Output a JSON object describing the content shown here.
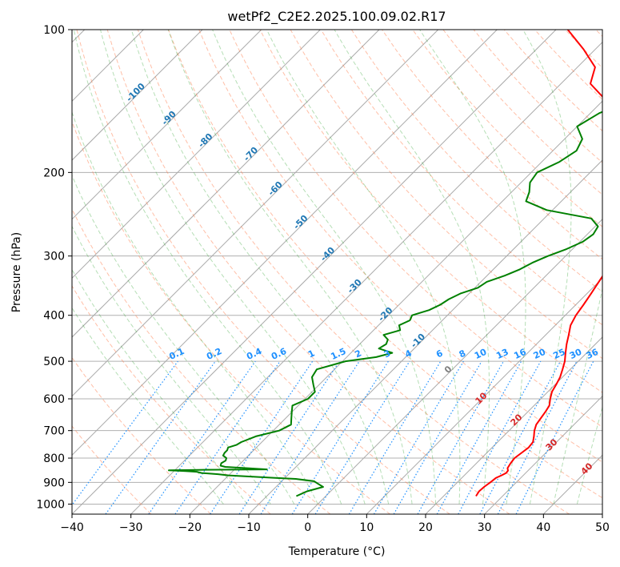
{
  "chart_data": {
    "type": "line",
    "title": "wetPf2_C2E2.2025.100.09.02.R17",
    "xlabel": "Temperature (°C)",
    "ylabel": "Pressure (hPa)",
    "xlim": [
      -40,
      50
    ],
    "ylim": [
      1050,
      100
    ],
    "y_scale": "log",
    "grid": true,
    "x_ticks": [
      "−40",
      "−30",
      "−20",
      "−10",
      "0",
      "10",
      "20",
      "30",
      "40",
      "50"
    ],
    "x_tick_values": [
      -40,
      -30,
      -20,
      -10,
      0,
      10,
      20,
      30,
      40,
      50
    ],
    "y_ticks": [
      "100",
      "200",
      "300",
      "400",
      "500",
      "600",
      "700",
      "800",
      "900",
      "1000"
    ],
    "y_tick_values": [
      100,
      200,
      300,
      400,
      500,
      600,
      700,
      800,
      900,
      1000
    ],
    "colors": {
      "temperature": "#ff0000",
      "dewpoint": "#008000",
      "isotherm": "#808080",
      "dry_adiabat": "#ff7f50",
      "moist_adiabat": "#2ca02c",
      "mixing_ratio": "#1e90ff",
      "isotherm_label_cold": "#1f77b4",
      "isotherm_label_zero": "#808080",
      "isotherm_label_warm": "#d62728"
    },
    "series": [
      {
        "pressure": [
          962,
          940,
          920,
          900,
          880,
          870,
          860,
          850,
          840,
          820,
          800,
          780,
          760,
          740,
          720,
          700,
          680,
          660,
          640,
          620,
          600,
          580,
          560,
          540,
          520,
          500,
          480,
          460,
          440,
          420,
          400,
          380,
          360,
          340,
          320,
          300,
          280,
          260,
          240,
          230,
          220,
          210,
          200,
          190,
          180,
          170,
          160,
          150,
          140,
          130,
          120,
          110,
          100
        ],
        "temperature": [
          25.5,
          25.2,
          25.3,
          25.6,
          25.8,
          26.3,
          26.7,
          26.6,
          26.1,
          25.8,
          25.6,
          25.9,
          26.2,
          26.0,
          25.2,
          24.3,
          23.6,
          23.3,
          23.0,
          22.6,
          21.6,
          20.7,
          20.2,
          19.6,
          18.7,
          17.7,
          16.4,
          15.1,
          13.9,
          12.6,
          11.8,
          11.3,
          10.7,
          10.0,
          9.3,
          8.4,
          7.3,
          5.9,
          3.9,
          3.0,
          4.2,
          5.2,
          4.8,
          3.8,
          1.9,
          -2.0,
          -8.0,
          -15.0,
          -20.0,
          -25.0,
          -27.0,
          -32.0,
          -38.0
        ]
      },
      {
        "pressure": [
          962,
          940,
          920,
          905,
          895,
          885,
          880,
          875,
          870,
          865,
          860,
          855,
          852,
          849,
          847,
          845,
          843,
          840,
          835,
          830,
          820,
          810,
          800,
          790,
          780,
          770,
          760,
          750,
          740,
          720,
          700,
          680,
          660,
          640,
          620,
          600,
          580,
          560,
          540,
          520,
          500,
          490,
          480,
          470,
          460,
          450,
          440,
          430,
          420,
          410,
          400,
          390,
          380,
          370,
          360,
          350,
          340,
          330,
          320,
          310,
          300,
          290,
          280,
          270,
          260,
          250,
          240,
          230,
          220,
          210,
          200,
          190,
          180,
          170,
          160,
          150,
          140,
          130,
          120,
          110,
          100
        ],
        "dewpoint": [
          -5.0,
          -4.0,
          -2.0,
          -3.5,
          -4.5,
          -8.0,
          -12.0,
          -16.0,
          -20.0,
          -22.0,
          -25.0,
          -26.0,
          -28.0,
          -31.0,
          -26.0,
          -14.5,
          -16.0,
          -18.0,
          -22.0,
          -23.0,
          -23.3,
          -23.0,
          -23.3,
          -24.3,
          -24.5,
          -24.5,
          -24.8,
          -23.8,
          -23.5,
          -22.0,
          -19.0,
          -18.0,
          -19.0,
          -20.0,
          -21.0,
          -19.5,
          -19.5,
          -21.0,
          -22.5,
          -23.0,
          -19.5,
          -15.0,
          -13.0,
          -16.0,
          -15.5,
          -16.0,
          -17.5,
          -15.5,
          -16.5,
          -15.5,
          -16.0,
          -14.0,
          -13.0,
          -12.5,
          -11.5,
          -9.5,
          -9.0,
          -7.0,
          -5.5,
          -4.5,
          -3.0,
          -1.0,
          0.5,
          1.0,
          0.5,
          -2.0,
          -11.0,
          -16.0,
          -17.0,
          -18.5,
          -19.0,
          -17.0,
          -16.0,
          -17.0,
          -20.0,
          -18.5,
          -15.0,
          -12.0,
          -10.0,
          -8.0,
          -6.0
        ]
      }
    ],
    "isotherm_labels": [
      "-100",
      "-90",
      "-80",
      "-70",
      "-60",
      "-50",
      "-40",
      "-30",
      "-20",
      "-10",
      "0",
      "10",
      "20",
      "30",
      "40"
    ],
    "isotherm_label_values": [
      -100,
      -90,
      -80,
      -70,
      -60,
      -50,
      -40,
      -30,
      -20,
      -10,
      0,
      10,
      20,
      30,
      40
    ],
    "mixing_ratio_labels": [
      "0.1",
      "0.2",
      "0.4",
      "0.6",
      "1",
      "1.5",
      "2",
      "3",
      "4",
      "6",
      "8",
      "10",
      "13",
      "16",
      "20",
      "25",
      "30",
      "36"
    ],
    "mixing_ratio_values": [
      0.1,
      0.2,
      0.4,
      0.6,
      1,
      1.5,
      2,
      3,
      4,
      6,
      8,
      10,
      13,
      16,
      20,
      25,
      30,
      36
    ]
  }
}
